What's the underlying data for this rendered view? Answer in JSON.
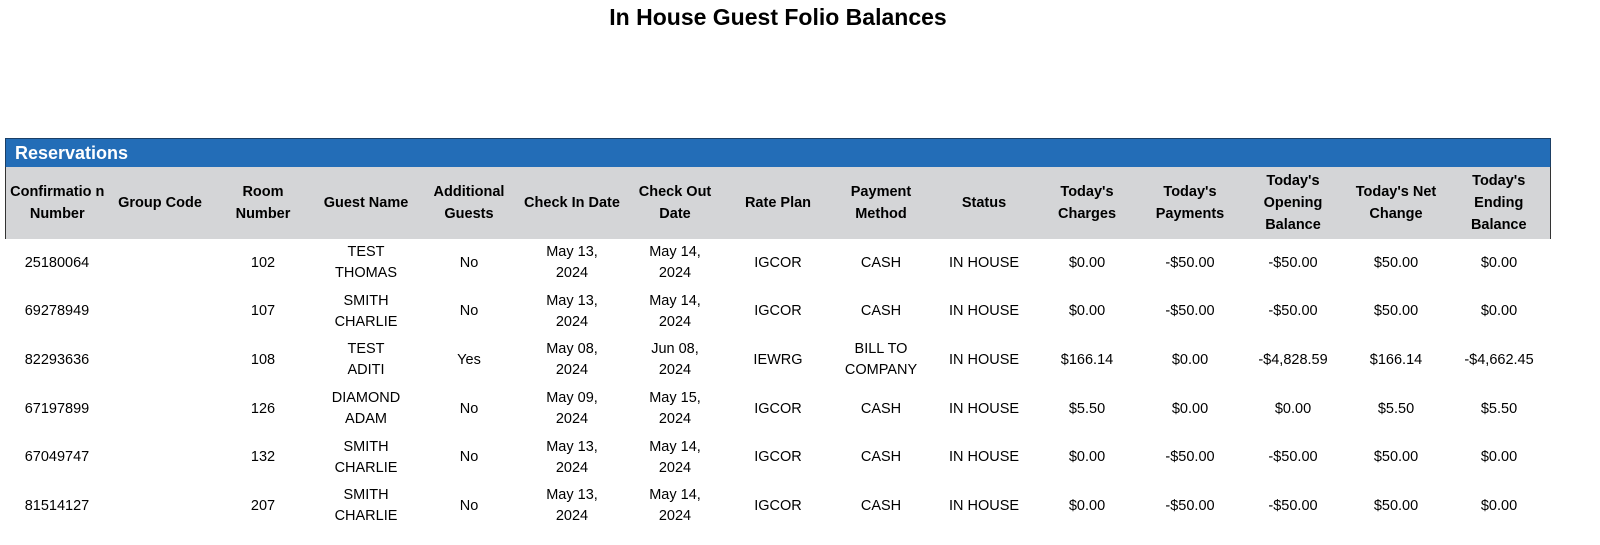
{
  "title": "In House Guest Folio Balances",
  "section": "Reservations",
  "columns": [
    "Confirmatio n Number",
    "Group Code",
    "Room Number",
    "Guest Name",
    "Additional Guests",
    "Check In Date",
    "Check Out Date",
    "Rate Plan",
    "Payment Method",
    "Status",
    "Today's Charges",
    "Today's Payments",
    "Today's Opening Balance",
    "Today's Net Change",
    "Today's Ending Balance"
  ],
  "rows": [
    [
      "25180064",
      "",
      "102",
      "TEST\nTHOMAS",
      "No",
      "May 13,\n2024",
      "May 14,\n2024",
      "IGCOR",
      "CASH",
      "IN HOUSE",
      "$0.00",
      "-$50.00",
      "-$50.00",
      "$50.00",
      "$0.00"
    ],
    [
      "69278949",
      "",
      "107",
      "SMITH\nCHARLIE",
      "No",
      "May 13,\n2024",
      "May 14,\n2024",
      "IGCOR",
      "CASH",
      "IN HOUSE",
      "$0.00",
      "-$50.00",
      "-$50.00",
      "$50.00",
      "$0.00"
    ],
    [
      "82293636",
      "",
      "108",
      "TEST\nADITI",
      "Yes",
      "May 08,\n2024",
      "Jun 08,\n2024",
      "IEWRG",
      "BILL TO\nCOMPANY",
      "IN HOUSE",
      "$166.14",
      "$0.00",
      "-$4,828.59",
      "$166.14",
      "-$4,662.45"
    ],
    [
      "67197899",
      "",
      "126",
      "DIAMOND\nADAM",
      "No",
      "May 09,\n2024",
      "May 15,\n2024",
      "IGCOR",
      "CASH",
      "IN HOUSE",
      "$5.50",
      "$0.00",
      "$0.00",
      "$5.50",
      "$5.50"
    ],
    [
      "67049747",
      "",
      "132",
      "SMITH\nCHARLIE",
      "No",
      "May 13,\n2024",
      "May 14,\n2024",
      "IGCOR",
      "CASH",
      "IN HOUSE",
      "$0.00",
      "-$50.00",
      "-$50.00",
      "$50.00",
      "$0.00"
    ],
    [
      "81514127",
      "",
      "207",
      "SMITH\nCHARLIE",
      "No",
      "May 13,\n2024",
      "May 14,\n2024",
      "IGCOR",
      "CASH",
      "IN HOUSE",
      "$0.00",
      "-$50.00",
      "-$50.00",
      "$50.00",
      "$0.00"
    ]
  ],
  "colors": {
    "band": "#236db7",
    "header_bg": "#d4d5d7"
  }
}
